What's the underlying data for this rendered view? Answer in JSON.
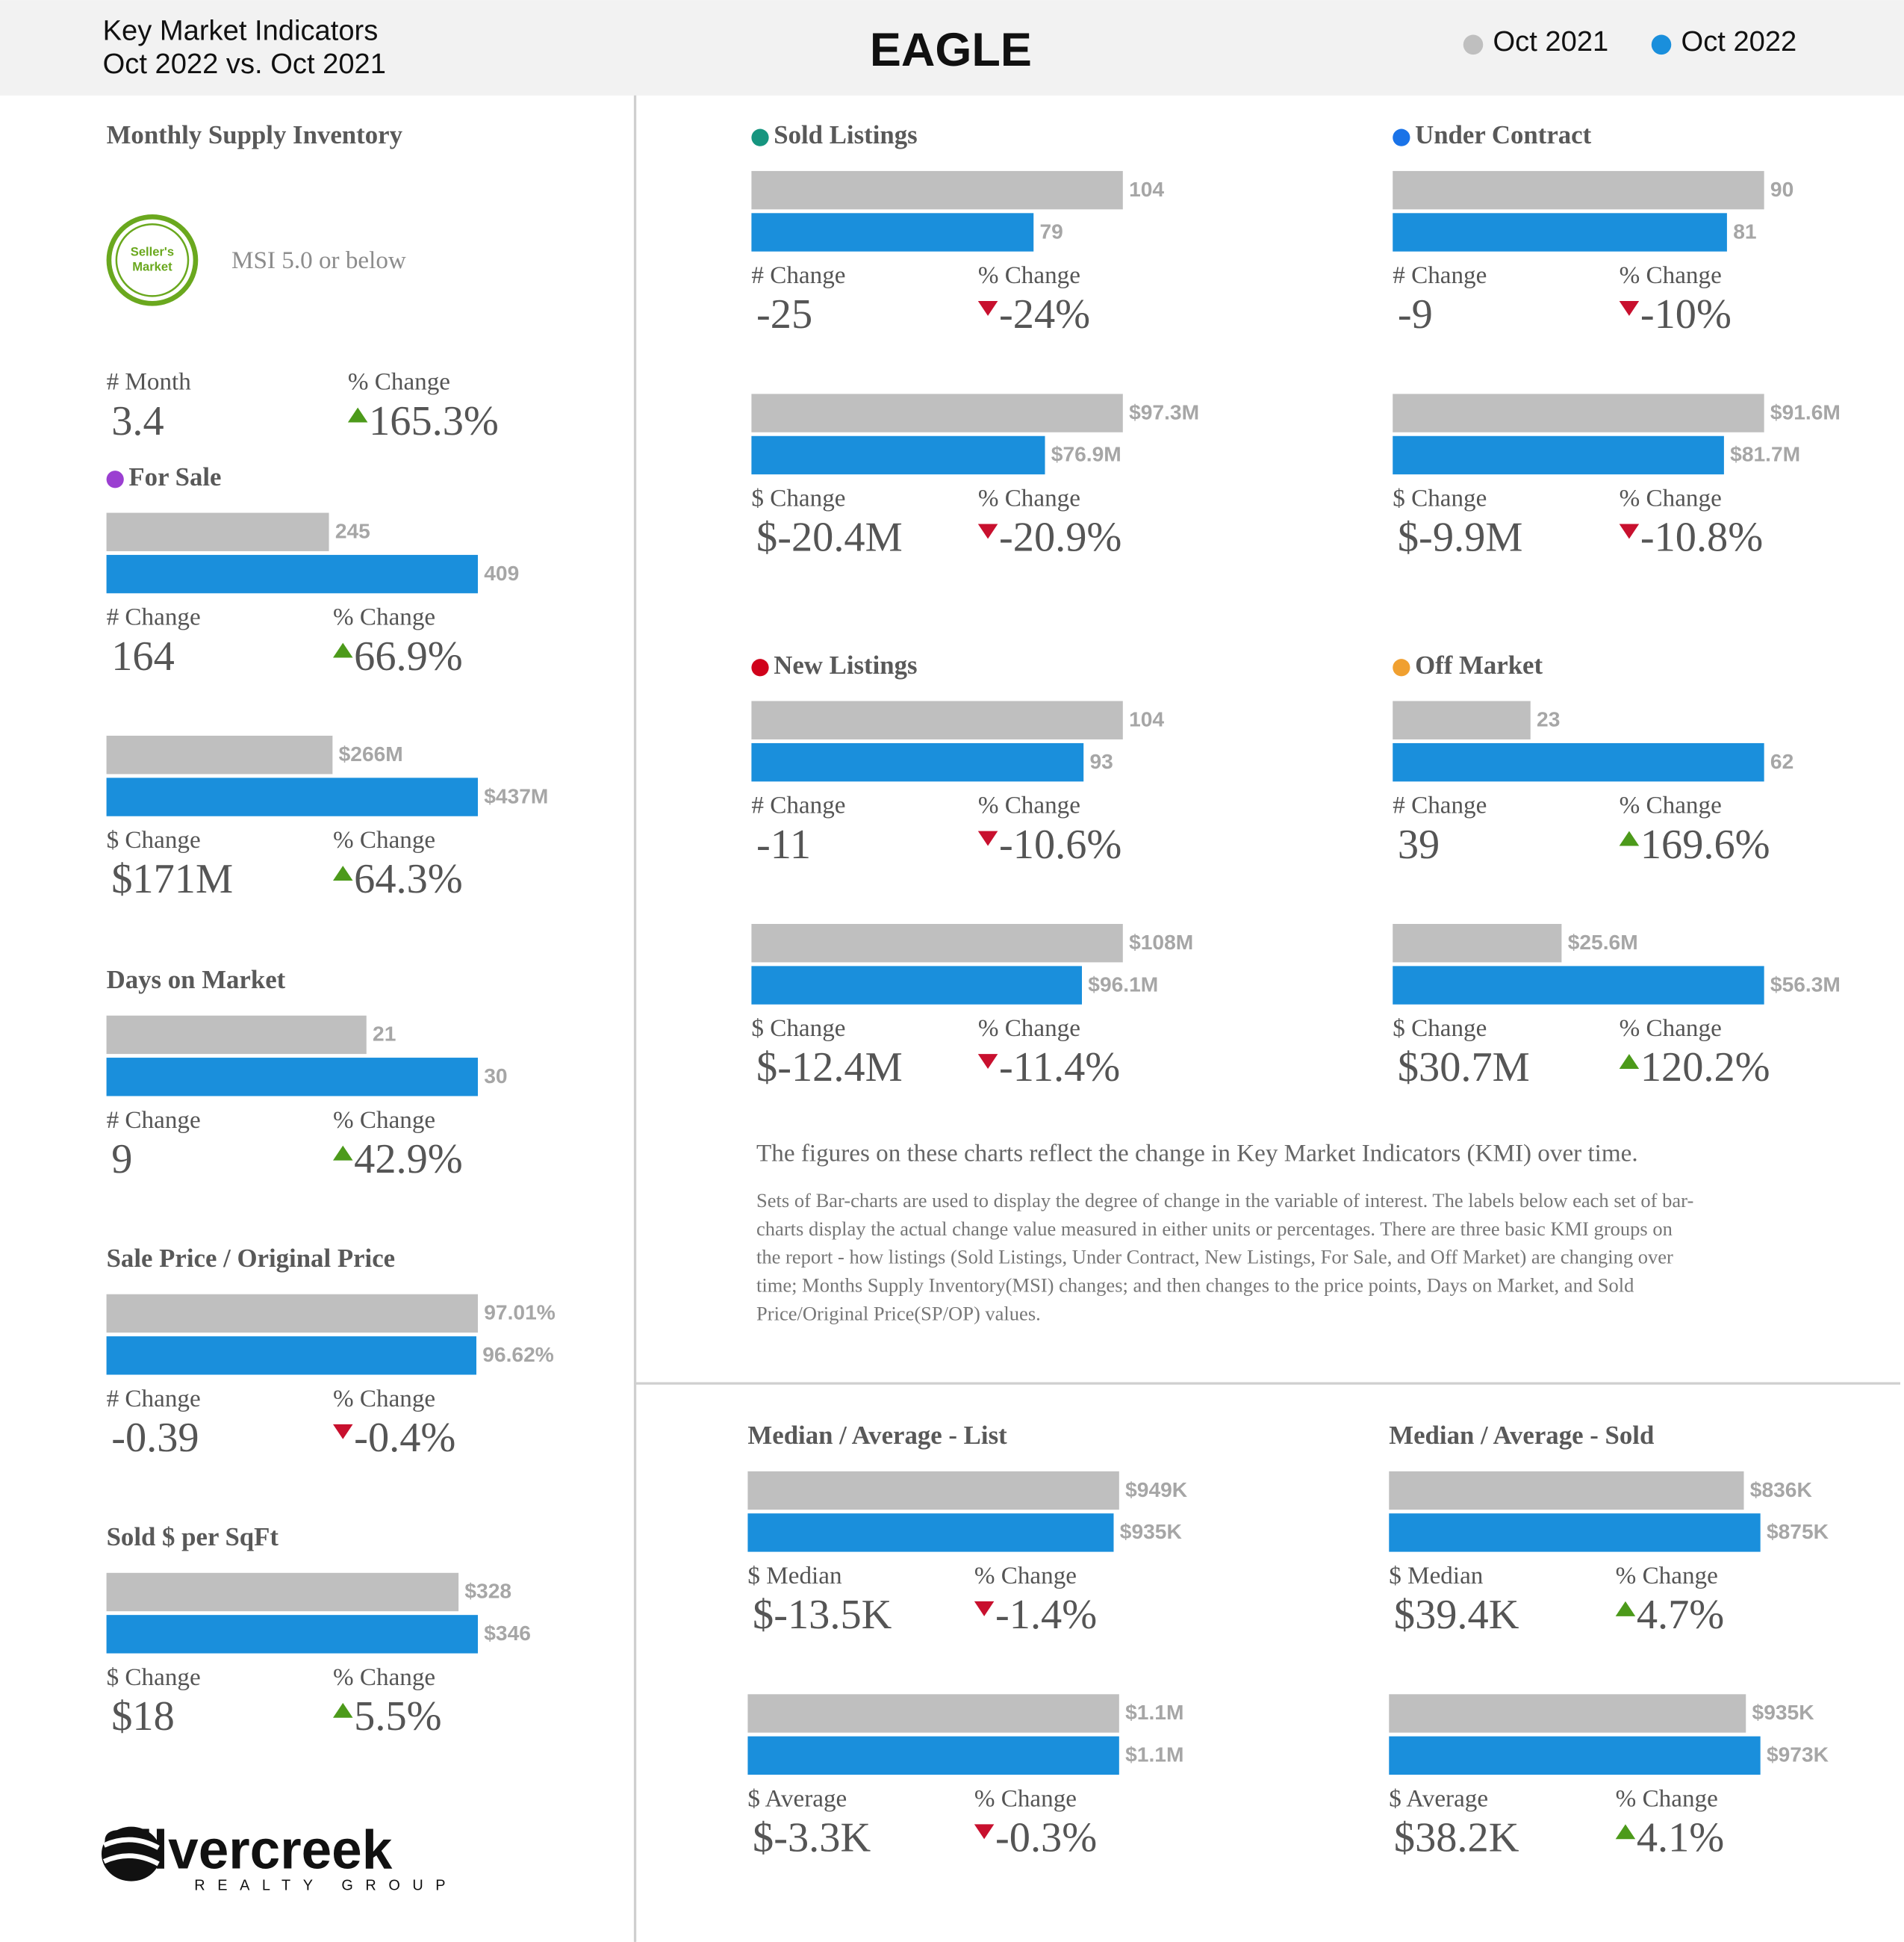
{
  "header": {
    "title": "Key Market Indicators",
    "subtitle": "Oct 2022 vs. Oct 2021",
    "area": "EAGLE",
    "legend": [
      {
        "name": "Oct 2021",
        "color": "#bfbfbf"
      },
      {
        "name": "Oct 2022",
        "color": "#1a8fdc"
      }
    ]
  },
  "msi": {
    "title": "Monthly Supply Inventory",
    "badge": [
      "Seller's",
      "Market"
    ],
    "note": "MSI 5.0 or below",
    "stats": [
      {
        "label": "# Month",
        "value": "3.4"
      },
      {
        "label": "% Change",
        "value": "165.3%"
      }
    ]
  },
  "panels": [
    {
      "title": "For Sale",
      "dot": "#9b3fd1",
      "groups": [
        {
          "values": [
            245,
            409
          ],
          "stats": [
            {
              "label": "# Change",
              "value": "164"
            },
            {
              "label": "% Change",
              "value": "66.9%"
            }
          ]
        },
        {
          "values": [
            266000000,
            437000000
          ],
          "value_labels": [
            "$266M",
            "$437M"
          ],
          "stats": [
            {
              "label": "$ Change",
              "value": "$171M"
            },
            {
              "label": "% Change",
              "value": "64.3%"
            }
          ]
        }
      ]
    },
    {
      "title": "Days on Market",
      "dot": null,
      "groups": [
        {
          "values": [
            21,
            30
          ],
          "stats": [
            {
              "label": "# Change",
              "value": "9"
            },
            {
              "label": "% Change",
              "value": "42.9%"
            }
          ]
        }
      ]
    },
    {
      "title": "Sale Price / Original Price",
      "dot": null,
      "groups": [
        {
          "values": [
            97.01,
            96.62
          ],
          "value_labels": [
            "97.01%",
            "96.62%"
          ],
          "stats": [
            {
              "label": "# Change",
              "value": "-0.39"
            },
            {
              "label": "% Change",
              "value": "-0.4%"
            }
          ]
        }
      ]
    },
    {
      "title": "Sold $ per SqFt",
      "dot": null,
      "groups": [
        {
          "values": [
            328,
            346
          ],
          "value_labels": [
            "$328",
            "$346"
          ],
          "stats": [
            {
              "label": "$ Change",
              "value": "$18"
            },
            {
              "label": "% Change",
              "value": "5.5%"
            }
          ]
        }
      ]
    },
    {
      "title": "Sold Listings",
      "dot": "#16957f",
      "groups": [
        {
          "values": [
            104,
            79
          ],
          "stats": [
            {
              "label": "# Change",
              "value": "-25"
            },
            {
              "label": "% Change",
              "value": "-24%"
            }
          ]
        },
        {
          "values": [
            97300000,
            76900000
          ],
          "value_labels": [
            "$97.3M",
            "$76.9M"
          ],
          "stats": [
            {
              "label": "$ Change",
              "value": "$-20.4M"
            },
            {
              "label": "% Change",
              "value": "-20.9%"
            }
          ]
        }
      ]
    },
    {
      "title": "Under Contract",
      "dot": "#1a73e8",
      "groups": [
        {
          "values": [
            90,
            81
          ],
          "stats": [
            {
              "label": "# Change",
              "value": "-9"
            },
            {
              "label": "% Change",
              "value": "-10%"
            }
          ]
        },
        {
          "values": [
            91600000,
            81700000
          ],
          "value_labels": [
            "$91.6M",
            "$81.7M"
          ],
          "stats": [
            {
              "label": "$ Change",
              "value": "$-9.9M"
            },
            {
              "label": "% Change",
              "value": "-10.8%"
            }
          ]
        }
      ]
    },
    {
      "title": "New Listings",
      "dot": "#d0021b",
      "groups": [
        {
          "values": [
            104,
            93
          ],
          "stats": [
            {
              "label": "# Change",
              "value": "-11"
            },
            {
              "label": "% Change",
              "value": "-10.6%"
            }
          ]
        },
        {
          "values": [
            108000000,
            96100000
          ],
          "value_labels": [
            "$108M",
            "$96.1M"
          ],
          "stats": [
            {
              "label": "$ Change",
              "value": "$-12.4M"
            },
            {
              "label": "% Change",
              "value": "-11.4%"
            }
          ]
        }
      ]
    },
    {
      "title": "Off Market",
      "dot": "#f0a030",
      "groups": [
        {
          "values": [
            23,
            62
          ],
          "stats": [
            {
              "label": "# Change",
              "value": "39"
            },
            {
              "label": "% Change",
              "value": "169.6%"
            }
          ]
        },
        {
          "values": [
            25600000,
            56300000
          ],
          "value_labels": [
            "$25.6M",
            "$56.3M"
          ],
          "stats": [
            {
              "label": "$ Change",
              "value": "$30.7M"
            },
            {
              "label": "% Change",
              "value": "120.2%"
            }
          ]
        }
      ]
    },
    {
      "title": "Median / Average - List",
      "dot": null,
      "groups": [
        {
          "values": [
            949000,
            935000
          ],
          "value_labels": [
            "$949K",
            "$935K"
          ],
          "stats": [
            {
              "label": "$ Median",
              "value": "$-13.5K"
            },
            {
              "label": "% Change",
              "value": "-1.4%"
            }
          ]
        },
        {
          "values": [
            1100000,
            1100000
          ],
          "value_labels": [
            "$1.1M",
            "$1.1M"
          ],
          "stats": [
            {
              "label": "$ Average",
              "value": "$-3.3K"
            },
            {
              "label": "% Change",
              "value": "-0.3%"
            }
          ]
        }
      ]
    },
    {
      "title": "Median / Average - Sold",
      "dot": null,
      "groups": [
        {
          "values": [
            836000,
            875000
          ],
          "value_labels": [
            "$836K",
            "$875K"
          ],
          "stats": [
            {
              "label": "$ Median",
              "value": "$39.4K"
            },
            {
              "label": "% Change",
              "value": "4.7%"
            }
          ]
        },
        {
          "values": [
            935000,
            973000
          ],
          "value_labels": [
            "$935K",
            "$973K"
          ],
          "stats": [
            {
              "label": "$ Average",
              "value": "$38.2K"
            },
            {
              "label": "% Change",
              "value": "4.1%"
            }
          ]
        }
      ]
    }
  ],
  "note": {
    "heading": "The figures on these charts reflect the change in Key Market Indicators (KMI) over time.",
    "lines": [
      "Sets of Bar-charts are used to display the degree of change in the variable of interest. The labels below each set of bar-",
      "charts display the actual change value measured in either units or percentages. There are three basic KMI groups on",
      "the report - how listings (Sold Listings, Under Contract, New Listings, For Sale, and Off Market) are changing over",
      "time; Months Supply Inventory(MSI) changes; and then changes to the price points, Days on Market, and Sold",
      "Price/Original Price(SP/OP) values."
    ]
  },
  "logo": {
    "name": "Silvercreek",
    "tagline": "REALTY GROUP"
  }
}
